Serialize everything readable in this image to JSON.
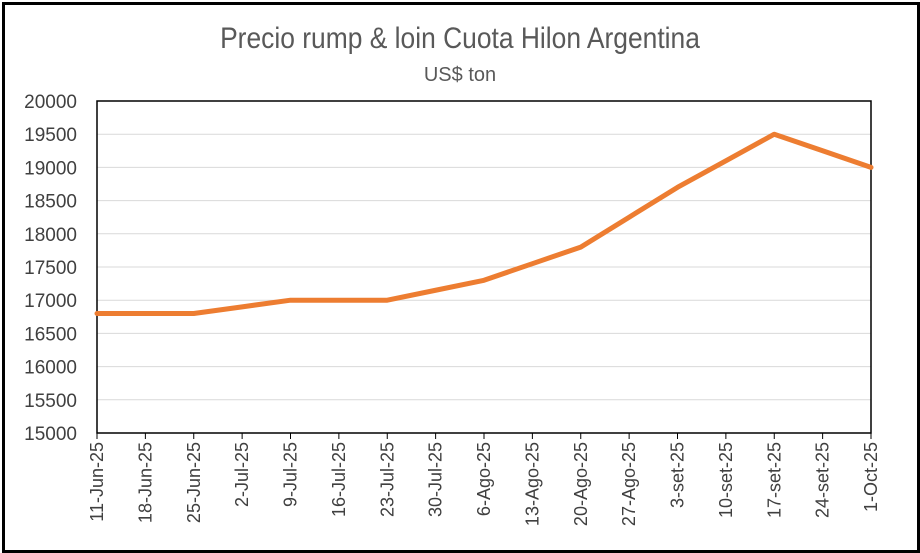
{
  "chart_data": {
    "type": "line",
    "title": "Precio rump & loin Cuota Hilon Argentina",
    "subtitle": "US$ ton",
    "xlabel": "",
    "ylabel": "",
    "categories": [
      "11-Jun-25",
      "18-Jun-25",
      "25-Jun-25",
      "2-Jul-25",
      "9-Jul-25",
      "16-Jul-25",
      "23-Jul-25",
      "30-Jul-25",
      "6-Ago-25",
      "13-Ago-25",
      "20-Ago-25",
      "27-Ago-25",
      "3-set-25",
      "10-set-25",
      "17-set-25",
      "24-set-25",
      "1-Oct-25"
    ],
    "series": [
      {
        "values": [
          16800,
          16800,
          16800,
          16900,
          17000,
          17000,
          17000,
          17150,
          17300,
          17550,
          17800,
          18250,
          18700,
          19100,
          19500,
          19250,
          19000
        ],
        "color": "#ED7D31"
      }
    ],
    "ylim": [
      15000,
      20000
    ],
    "yticks": [
      "15000",
      "15500",
      "16000",
      "16500",
      "17000",
      "17500",
      "18000",
      "18500",
      "19000",
      "19500",
      "20000"
    ],
    "grid": true,
    "legend": "none"
  }
}
